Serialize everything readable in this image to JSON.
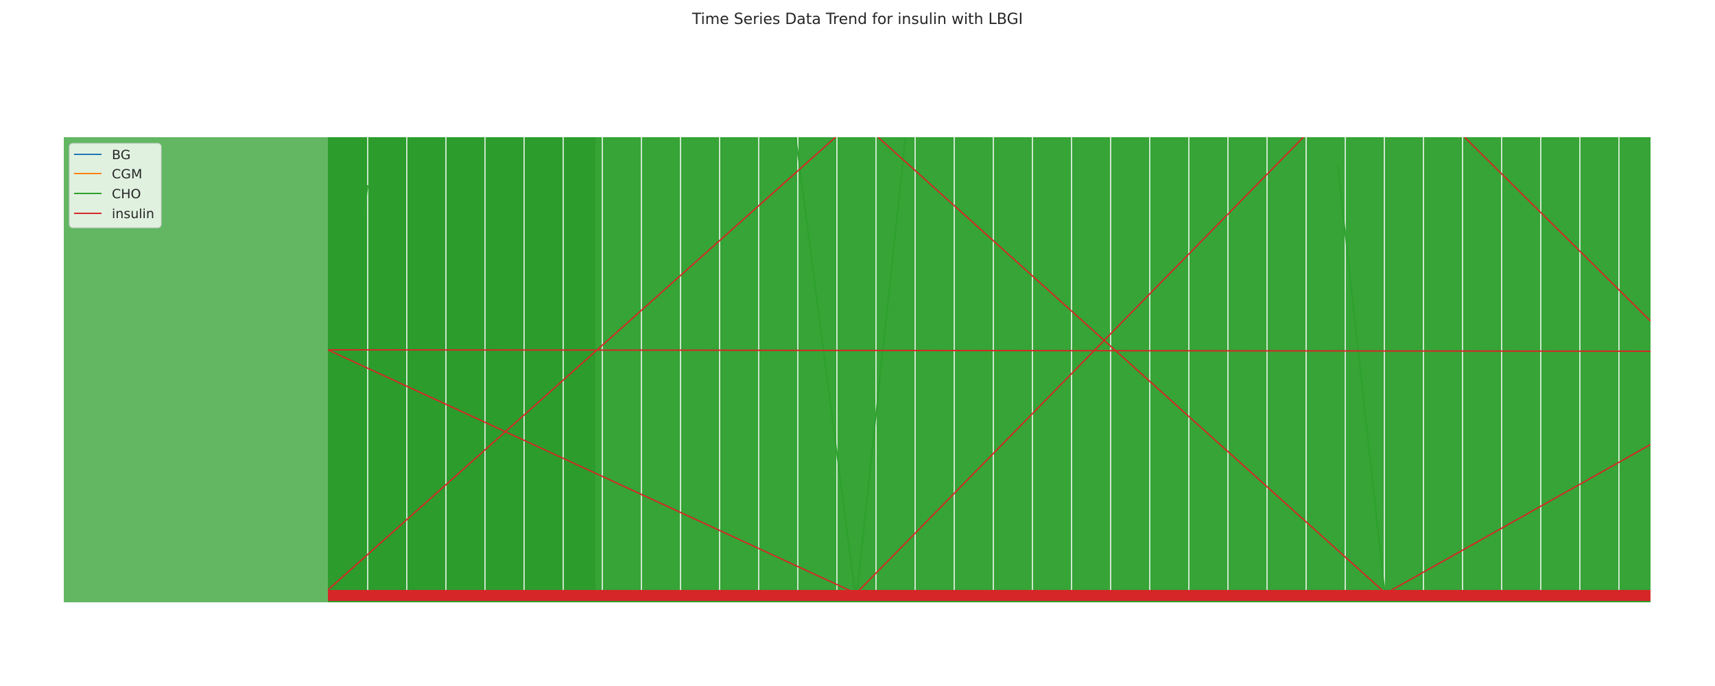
{
  "chart_data": {
    "type": "line",
    "title": "Time Series Data Trend for insulin with LBGI",
    "xlabel": "",
    "ylabel": "",
    "grid": true,
    "legend_position": "top-left",
    "series": [
      {
        "name": "BG",
        "color": "#1f77b4"
      },
      {
        "name": "CGM",
        "color": "#ff7f0e"
      },
      {
        "name": "CHO",
        "color": "#2ca02c"
      },
      {
        "name": "insulin",
        "color": "#d62728"
      }
    ]
  }
}
